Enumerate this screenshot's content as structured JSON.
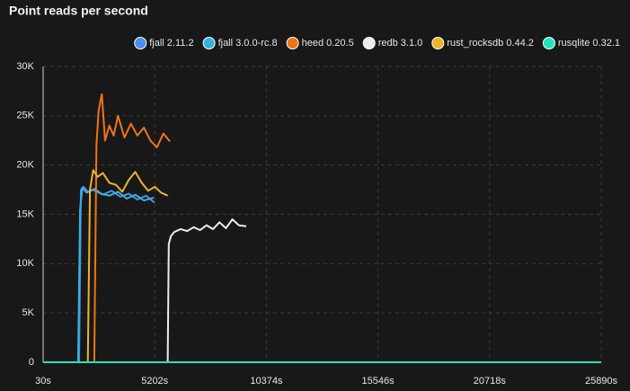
{
  "chart_data": {
    "type": "line",
    "title": "Point reads per second",
    "xlim": [
      30,
      25890
    ],
    "xticks": [
      {
        "value": 30,
        "label": "30s"
      },
      {
        "value": 5202,
        "label": "5202s"
      },
      {
        "value": 10374,
        "label": "10374s"
      },
      {
        "value": 15546,
        "label": "15546s"
      },
      {
        "value": 20718,
        "label": "20718s"
      },
      {
        "value": 25890,
        "label": "25890s"
      }
    ],
    "ylim": [
      0,
      30000
    ],
    "yticks": [
      0,
      {
        "value": 5000,
        "label": "5K"
      },
      {
        "value": 10000,
        "label": "10K"
      },
      {
        "value": 15000,
        "label": "15K"
      },
      {
        "value": 20000,
        "label": "20K"
      },
      {
        "value": 25000,
        "label": "25K"
      },
      {
        "value": 30000,
        "label": "30K"
      }
    ],
    "grid": true,
    "legend": "top-right",
    "series": [
      {
        "name": "fjall 2.11.2",
        "color": "#4a8fe8",
        "x": [
          1696,
          1780,
          1900,
          2100,
          2400,
          2800,
          3200,
          3600,
          4000,
          4400,
          4800,
          5190
        ],
        "values": [
          0,
          17500,
          17800,
          17300,
          17600,
          17000,
          17400,
          16800,
          17100,
          16500,
          16900,
          16200
        ]
      },
      {
        "name": "fjall 3.0.0-rc.8",
        "color": "#36b3dc",
        "x": [
          1650,
          1740,
          1850,
          2050,
          2350,
          2700,
          3100,
          3500,
          3900,
          4300,
          4700,
          5150
        ],
        "values": [
          0,
          15500,
          17700,
          17200,
          17500,
          17100,
          16900,
          17300,
          16600,
          17000,
          16400,
          16700
        ]
      },
      {
        "name": "heed 0.20.5",
        "color": "#ee7418",
        "x": [
          2400,
          2500,
          2600,
          2750,
          2900,
          3100,
          3300,
          3500,
          3800,
          4100,
          4400,
          4700,
          5000,
          5300,
          5600,
          5900
        ],
        "values": [
          0,
          22000,
          25500,
          27200,
          22500,
          24000,
          23000,
          25000,
          22800,
          24200,
          23000,
          23800,
          22500,
          21800,
          23200,
          22400
        ]
      },
      {
        "name": "redb 3.1.0",
        "color": "#ececec",
        "x": [
          5800,
          5850,
          5950,
          6100,
          6400,
          6700,
          7000,
          7300,
          7600,
          7900,
          8200,
          8500,
          8800,
          9100,
          9440
        ],
        "values": [
          0,
          12000,
          12800,
          13200,
          13500,
          13300,
          13700,
          13400,
          13900,
          13500,
          14200,
          13600,
          14500,
          13900,
          13800
        ]
      },
      {
        "name": "rust_rocksdb 0.44.2",
        "color": "#f0b429",
        "x": [
          2100,
          2200,
          2350,
          2550,
          2800,
          3100,
          3400,
          3700,
          4000,
          4300,
          4600,
          4900,
          5200,
          5500,
          5800
        ],
        "values": [
          0,
          17500,
          19500,
          18800,
          19200,
          18200,
          18000,
          17300,
          18500,
          19300,
          18200,
          17400,
          17800,
          17200,
          16900
        ]
      },
      {
        "name": "rusqlite 0.32.1",
        "color": "#22e3c4",
        "x": [
          30,
          25890
        ],
        "values": [
          0,
          0
        ]
      }
    ]
  }
}
